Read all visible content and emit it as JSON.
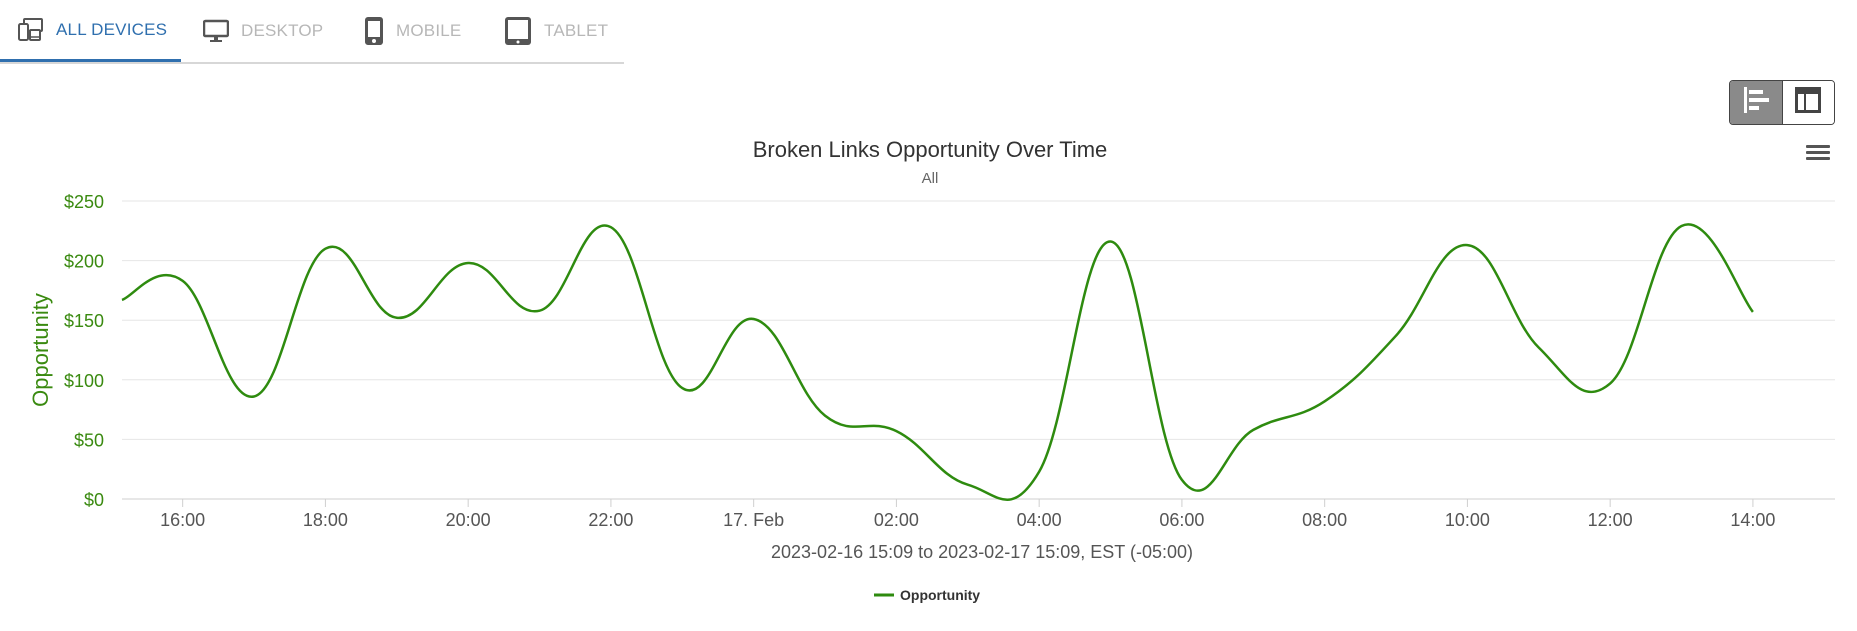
{
  "device_tabs": [
    {
      "label": "ALL DEVICES",
      "icon": "all-devices-icon",
      "active": true
    },
    {
      "label": "DESKTOP",
      "icon": "desktop-icon",
      "active": false
    },
    {
      "label": "MOBILE",
      "icon": "mobile-icon",
      "active": false
    },
    {
      "label": "TABLET",
      "icon": "tablet-icon",
      "active": false
    }
  ],
  "view_toggle": {
    "options": [
      {
        "icon": "bar-chart-view-icon",
        "active": true
      },
      {
        "icon": "table-view-icon",
        "active": false
      }
    ]
  },
  "chart_menu_icon": "hamburger-menu-icon",
  "colors": {
    "accent": "#2f6fae",
    "series": "#2e8b0f",
    "axis_text": "#3a8a10",
    "inactive_tab": "#b7b7b7"
  },
  "chart_data": {
    "type": "line",
    "title": "Broken Links Opportunity Over Time",
    "subtitle": "All",
    "ylabel": "Opportunity",
    "xlabel": "2023-02-16 15:09 to 2023-02-17 15:09, EST (-05:00)",
    "ylim": [
      0,
      250
    ],
    "yticks": [
      "$0",
      "$50",
      "$100",
      "$150",
      "$200",
      "$250"
    ],
    "ytick_values": [
      0,
      50,
      100,
      150,
      200,
      250
    ],
    "xlim": [
      "2023-02-16 15:09",
      "2023-02-17 15:09"
    ],
    "xticks": [
      {
        "t": "2023-02-16 16:00",
        "label": "16:00"
      },
      {
        "t": "2023-02-16 18:00",
        "label": "18:00"
      },
      {
        "t": "2023-02-16 20:00",
        "label": "20:00"
      },
      {
        "t": "2023-02-16 22:00",
        "label": "22:00"
      },
      {
        "t": "2023-02-17 00:00",
        "label": "17. Feb"
      },
      {
        "t": "2023-02-17 02:00",
        "label": "02:00"
      },
      {
        "t": "2023-02-17 04:00",
        "label": "04:00"
      },
      {
        "t": "2023-02-17 06:00",
        "label": "06:00"
      },
      {
        "t": "2023-02-17 08:00",
        "label": "08:00"
      },
      {
        "t": "2023-02-17 10:00",
        "label": "10:00"
      },
      {
        "t": "2023-02-17 12:00",
        "label": "12:00"
      },
      {
        "t": "2023-02-17 14:00",
        "label": "14:00"
      }
    ],
    "grid": true,
    "legend_position": "bottom-center",
    "series": [
      {
        "name": "Opportunity",
        "color": "#2e8b0f",
        "points": [
          [
            "2023-02-16 15:09",
            167
          ],
          [
            "2023-02-16 16:00",
            183
          ],
          [
            "2023-02-16 17:00",
            86
          ],
          [
            "2023-02-16 18:00",
            210
          ],
          [
            "2023-02-16 19:00",
            152
          ],
          [
            "2023-02-16 20:00",
            198
          ],
          [
            "2023-02-16 21:00",
            158
          ],
          [
            "2023-02-16 22:00",
            228
          ],
          [
            "2023-02-16 23:00",
            93
          ],
          [
            "2023-02-17 00:00",
            151
          ],
          [
            "2023-02-17 01:00",
            70
          ],
          [
            "2023-02-17 02:00",
            57
          ],
          [
            "2023-02-17 03:00",
            12
          ],
          [
            "2023-02-17 04:00",
            23
          ],
          [
            "2023-02-17 05:00",
            216
          ],
          [
            "2023-02-17 06:00",
            16
          ],
          [
            "2023-02-17 07:00",
            58
          ],
          [
            "2023-02-17 08:00",
            82
          ],
          [
            "2023-02-17 09:00",
            137
          ],
          [
            "2023-02-17 10:00",
            213
          ],
          [
            "2023-02-17 11:00",
            127
          ],
          [
            "2023-02-17 12:00",
            97
          ],
          [
            "2023-02-17 13:00",
            229
          ],
          [
            "2023-02-17 14:00",
            157
          ]
        ]
      }
    ]
  }
}
